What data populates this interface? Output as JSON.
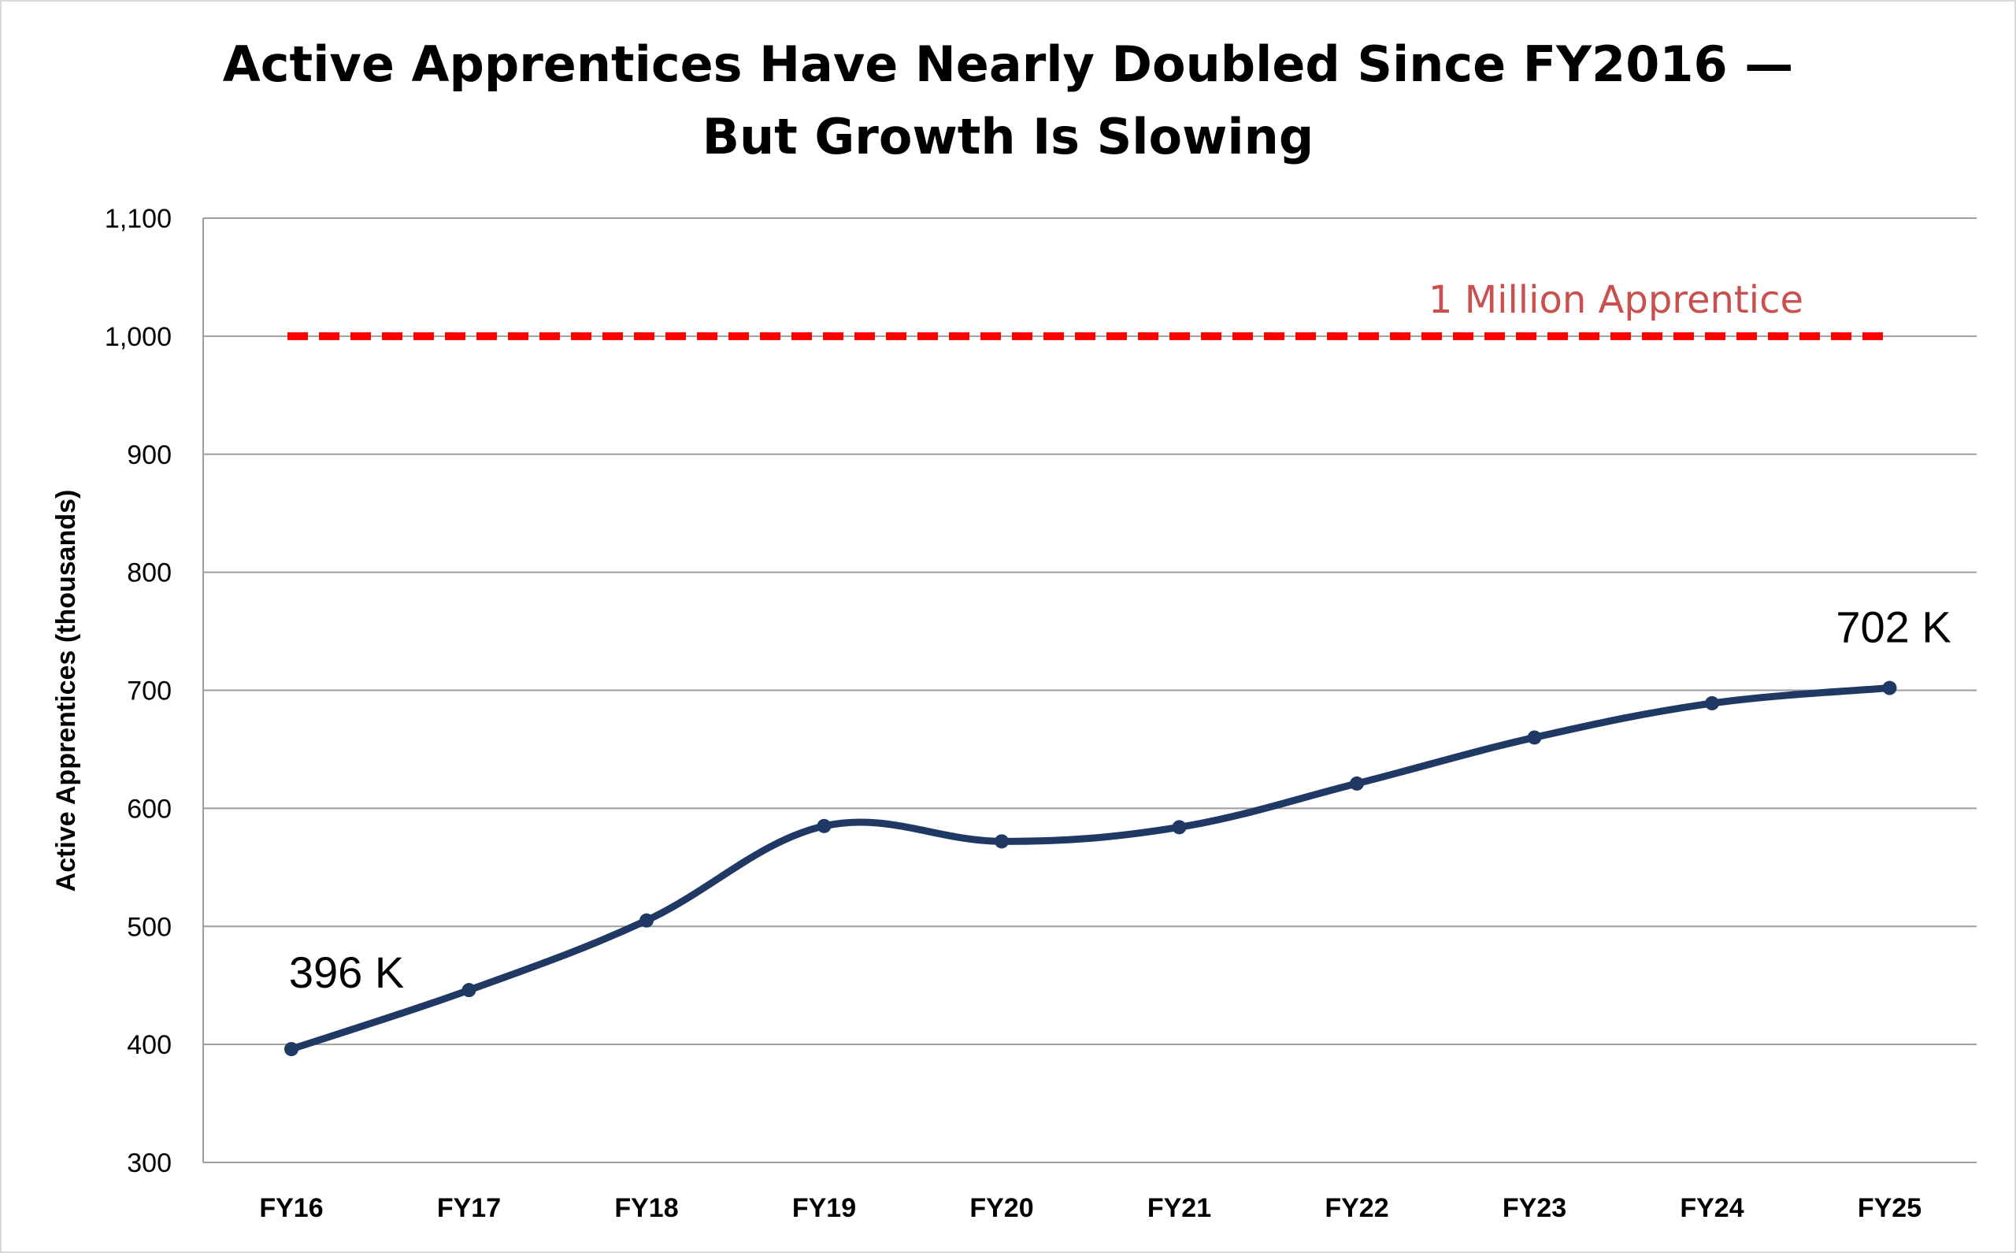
{
  "chart_data": {
    "type": "line",
    "title": [
      "Active Apprentices Have Nearly Doubled Since FY2016 —",
      "But Growth Is Slowing"
    ],
    "xlabel": "",
    "ylabel": "Active Apprentices (thousands)",
    "ylim": [
      300,
      1100
    ],
    "yticks": [
      300,
      400,
      500,
      600,
      700,
      800,
      900,
      1000,
      1100
    ],
    "ytick_labels": [
      "300",
      "400",
      "500",
      "600",
      "700",
      "800",
      "900",
      "1,000",
      "1,100"
    ],
    "grid": "horizontal",
    "categories": [
      "FY16",
      "FY17",
      "FY18",
      "FY19",
      "FY20",
      "FY21",
      "FY22",
      "FY23",
      "FY24",
      "FY25"
    ],
    "series": [
      {
        "values": [
          396,
          446,
          505,
          585,
          572,
          584,
          621,
          660,
          689,
          702
        ],
        "color": "#1f3864"
      }
    ],
    "reference_line": {
      "value": 1000,
      "label": "1 Million Apprentice",
      "color": "#ff0000",
      "label_color": "#c9504f",
      "style": "dashed"
    },
    "annotations": [
      {
        "category": "FY16",
        "text": "396 K"
      },
      {
        "category": "FY25",
        "text": "702 K"
      }
    ]
  }
}
